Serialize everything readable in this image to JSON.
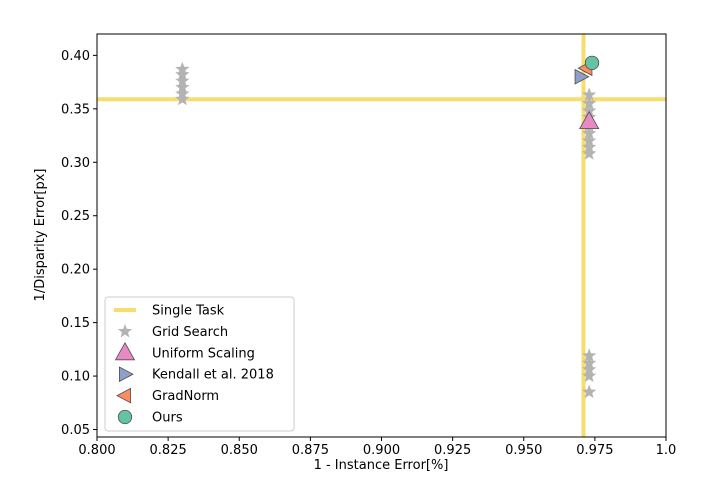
{
  "chart_data": {
    "type": "scatter",
    "xlabel": "1 - Instance Error[%]",
    "ylabel": "1/Disparity Error[px]",
    "xlim": [
      0.8,
      1.0
    ],
    "ylim": [
      0.043,
      0.42
    ],
    "x_ticks": [
      "0.800",
      "0.825",
      "0.850",
      "0.875",
      "0.900",
      "0.925",
      "0.950",
      "0.975",
      "1.0"
    ],
    "x_tick_values": [
      0.8,
      0.825,
      0.85,
      0.875,
      0.9,
      0.925,
      0.95,
      0.975,
      1.0
    ],
    "y_ticks": [
      "0.05",
      "0.10",
      "0.15",
      "0.20",
      "0.25",
      "0.30",
      "0.35",
      "0.40"
    ],
    "y_tick_values": [
      0.05,
      0.1,
      0.15,
      0.2,
      0.25,
      0.3,
      0.35,
      0.4
    ],
    "grid": false,
    "legend_position": "lower-left",
    "single_task": {
      "name": "Single Task",
      "x": 0.971,
      "y": 0.359,
      "color": "#f6dd6e"
    },
    "series": [
      {
        "name": "Grid Search",
        "marker": "star",
        "color": "#b3b3b3",
        "points": [
          [
            0.83,
            0.387
          ],
          [
            0.83,
            0.382
          ],
          [
            0.83,
            0.376
          ],
          [
            0.83,
            0.37
          ],
          [
            0.83,
            0.364
          ],
          [
            0.83,
            0.359
          ],
          [
            0.973,
            0.363
          ],
          [
            0.973,
            0.355
          ],
          [
            0.973,
            0.348
          ],
          [
            0.973,
            0.342
          ],
          [
            0.973,
            0.334
          ],
          [
            0.973,
            0.327
          ],
          [
            0.973,
            0.32
          ],
          [
            0.973,
            0.314
          ],
          [
            0.973,
            0.308
          ],
          [
            0.973,
            0.119
          ],
          [
            0.973,
            0.112
          ],
          [
            0.973,
            0.106
          ],
          [
            0.973,
            0.1
          ],
          [
            0.973,
            0.085
          ]
        ]
      },
      {
        "name": "Uniform Scaling",
        "marker": "triangle-up",
        "color": "#e78ac3",
        "points": [
          [
            0.973,
            0.338
          ]
        ]
      },
      {
        "name": "Kendall et al. 2018",
        "marker": "triangle-right",
        "color": "#8da0cb",
        "points": [
          [
            0.97,
            0.38
          ]
        ]
      },
      {
        "name": "GradNorm",
        "marker": "triangle-left",
        "color": "#fc8d62",
        "points": [
          [
            0.972,
            0.388
          ]
        ]
      },
      {
        "name": "Ours",
        "marker": "circle",
        "color": "#66c2a5",
        "points": [
          [
            0.974,
            0.393
          ]
        ]
      }
    ]
  }
}
